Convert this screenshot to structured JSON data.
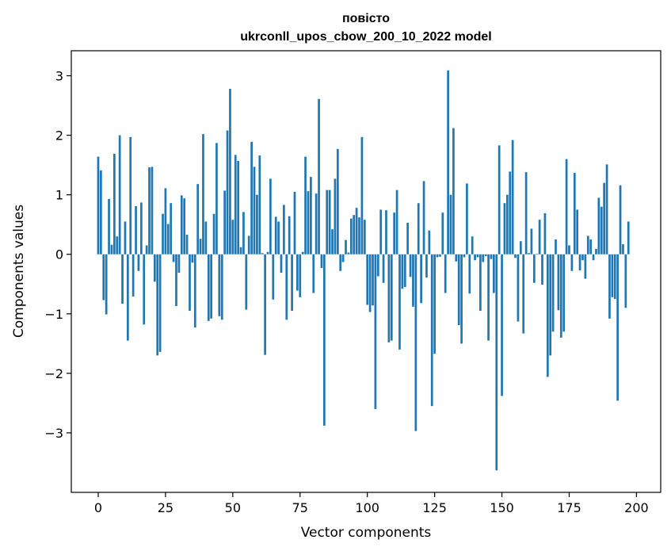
{
  "chart_data": {
    "type": "bar",
    "title": "повісто",
    "subtitle": "ukrconll_upos_cbow_200_10_2022 model",
    "xlabel": "Vector components",
    "ylabel": "Components values",
    "xlim": [
      -10,
      209
    ],
    "ylim": [
      -4.0,
      3.42
    ],
    "xticks": [
      0,
      25,
      50,
      75,
      100,
      125,
      150,
      175,
      200
    ],
    "yticks": [
      -3,
      -2,
      -1,
      0,
      1,
      2,
      3
    ],
    "xtick_labels": [
      "0",
      "25",
      "50",
      "75",
      "100",
      "125",
      "150",
      "175",
      "200"
    ],
    "ytick_labels": [
      "−3",
      "−2",
      "−1",
      "0",
      "1",
      "2",
      "3"
    ],
    "grid": false,
    "bar_color": "#1f77b4",
    "series": [
      {
        "values": [
          1.64,
          1.41,
          -0.77,
          -1.01,
          0.93,
          0.16,
          1.69,
          0.3,
          2.0,
          -0.83,
          0.55,
          -1.45,
          1.97,
          -0.71,
          0.81,
          -0.28,
          0.87,
          -1.18,
          0.15,
          1.46,
          1.47,
          -0.46,
          -1.7,
          -1.64,
          0.68,
          1.11,
          0.51,
          0.86,
          -0.13,
          -0.87,
          -0.31,
          0.99,
          0.94,
          0.33,
          -0.95,
          -0.14,
          -1.23,
          1.18,
          0.26,
          2.02,
          0.55,
          -1.12,
          -1.08,
          0.68,
          1.87,
          -1.04,
          -1.1,
          1.07,
          2.08,
          2.78,
          0.58,
          1.67,
          1.57,
          0.12,
          0.71,
          -0.93,
          0.31,
          1.89,
          1.47,
          1.0,
          1.66,
          0.02,
          -1.69,
          0.04,
          1.27,
          -0.76,
          0.63,
          0.55,
          -0.31,
          0.83,
          -1.1,
          0.64,
          -0.95,
          1.05,
          -0.61,
          -0.72,
          0.04,
          1.64,
          1.06,
          1.3,
          -0.65,
          1.02,
          2.61,
          -0.23,
          -2.88,
          1.08,
          1.08,
          0.42,
          1.27,
          1.77,
          -0.28,
          -0.13,
          0.24,
          0.03,
          0.6,
          0.66,
          0.78,
          0.62,
          1.97,
          0.58,
          -0.85,
          -0.97,
          -0.86,
          -2.6,
          -0.37,
          0.75,
          -0.48,
          0.74,
          -1.48,
          -1.45,
          0.7,
          1.08,
          -1.6,
          -0.58,
          -0.55,
          0.53,
          -0.38,
          -0.88,
          -2.97,
          0.86,
          -0.82,
          1.23,
          -0.39,
          0.4,
          -2.55,
          -1.67,
          -0.05,
          -0.04,
          0.7,
          -0.65,
          3.09,
          1.0,
          2.12,
          -0.12,
          -1.19,
          -1.5,
          -0.05,
          1.19,
          -0.66,
          0.3,
          -0.1,
          -0.05,
          -0.95,
          -0.13,
          -0.03,
          -1.45,
          -0.08,
          -0.65,
          -3.63,
          1.83,
          -2.38,
          0.86,
          1.0,
          1.39,
          1.92,
          -0.06,
          -1.13,
          0.22,
          -1.33,
          1.38,
          0.02,
          0.43,
          -0.48,
          0.01,
          0.58,
          -0.51,
          0.69,
          -2.06,
          -1.7,
          -1.3,
          0.25,
          -0.94,
          -1.4,
          -1.3,
          1.6,
          0.15,
          -0.28,
          1.37,
          0.75,
          -0.27,
          -0.1,
          -0.41,
          0.31,
          0.25,
          -0.1,
          0.09,
          0.95,
          0.8,
          1.2,
          1.51,
          -1.08,
          -0.72,
          -0.75,
          -2.46,
          1.16,
          0.17,
          -0.9,
          0.55
        ]
      }
    ]
  }
}
